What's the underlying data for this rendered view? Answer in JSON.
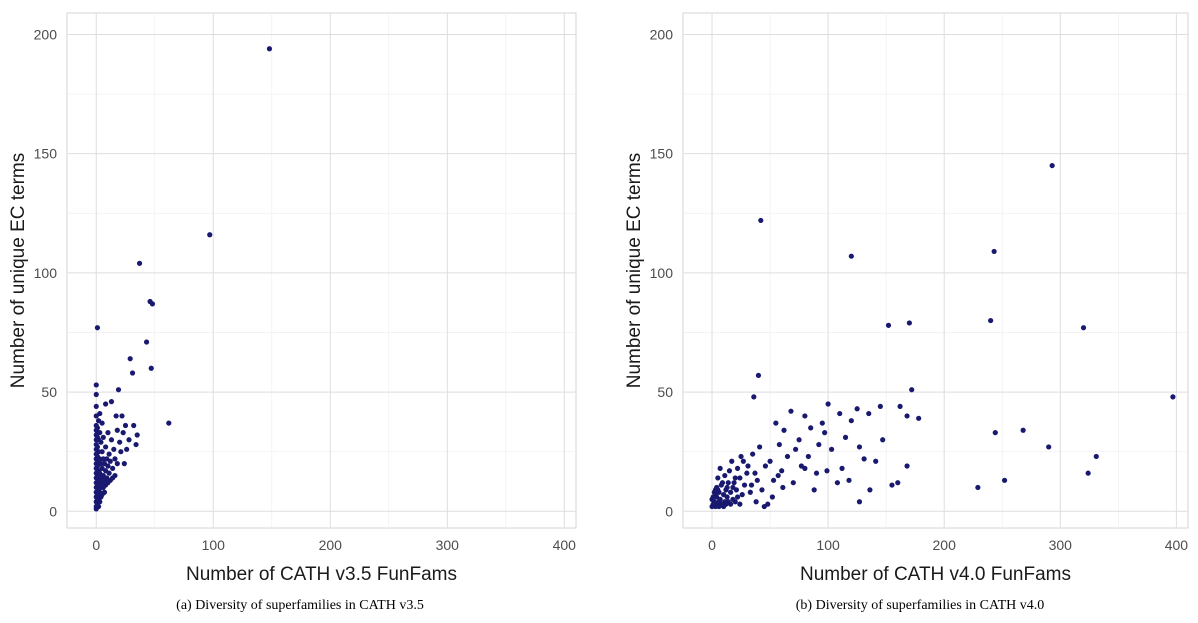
{
  "chart_data": [
    {
      "type": "scatter",
      "xlabel": "Number of CATH v3.5 FunFams",
      "ylabel": "Number of unique EC terms",
      "caption": "(a) Diversity of superfamilies in CATH v3.5",
      "xlim": [
        -25,
        410
      ],
      "ylim": [
        -7,
        209
      ],
      "xticks": [
        0,
        100,
        200,
        300,
        400
      ],
      "yticks": [
        0,
        50,
        100,
        150,
        200
      ],
      "grid": true,
      "point_color": "#191970",
      "points": [
        [
          148,
          194
        ],
        [
          97,
          116
        ],
        [
          37,
          104
        ],
        [
          46,
          88
        ],
        [
          48,
          87
        ],
        [
          43,
          71
        ],
        [
          29,
          64
        ],
        [
          47,
          60
        ],
        [
          31,
          58
        ],
        [
          1,
          77
        ],
        [
          62,
          37
        ],
        [
          19,
          51
        ],
        [
          13,
          46
        ],
        [
          8,
          45
        ],
        [
          32,
          36
        ],
        [
          34,
          28
        ],
        [
          22,
          40
        ],
        [
          17,
          40
        ],
        [
          25,
          36
        ],
        [
          18,
          34
        ],
        [
          0,
          53
        ],
        [
          0,
          49
        ],
        [
          0,
          44
        ],
        [
          0,
          40
        ],
        [
          0,
          36
        ],
        [
          0,
          34
        ],
        [
          0,
          32
        ],
        [
          0,
          30
        ],
        [
          0,
          28
        ],
        [
          0,
          26
        ],
        [
          0,
          24
        ],
        [
          0,
          22
        ],
        [
          0,
          20
        ],
        [
          0,
          18
        ],
        [
          0,
          16
        ],
        [
          0,
          14
        ],
        [
          0,
          12
        ],
        [
          0,
          10
        ],
        [
          0,
          8
        ],
        [
          0,
          6
        ],
        [
          0,
          4
        ],
        [
          0,
          2
        ],
        [
          0,
          1
        ],
        [
          1,
          35
        ],
        [
          1,
          31
        ],
        [
          1,
          27
        ],
        [
          1,
          23
        ],
        [
          1,
          19
        ],
        [
          1,
          15
        ],
        [
          1,
          11
        ],
        [
          1,
          7
        ],
        [
          1,
          3
        ],
        [
          2,
          38
        ],
        [
          2,
          30
        ],
        [
          2,
          25
        ],
        [
          2,
          21
        ],
        [
          2,
          17
        ],
        [
          2,
          13
        ],
        [
          2,
          9
        ],
        [
          2,
          5
        ],
        [
          2,
          2
        ],
        [
          3,
          41
        ],
        [
          3,
          33
        ],
        [
          3,
          22
        ],
        [
          3,
          16
        ],
        [
          3,
          12
        ],
        [
          3,
          8
        ],
        [
          3,
          4
        ],
        [
          4,
          29
        ],
        [
          4,
          20
        ],
        [
          4,
          14
        ],
        [
          4,
          10
        ],
        [
          4,
          6
        ],
        [
          5,
          37
        ],
        [
          5,
          25
        ],
        [
          5,
          18
        ],
        [
          5,
          12
        ],
        [
          5,
          7
        ],
        [
          6,
          31
        ],
        [
          6,
          22
        ],
        [
          6,
          15
        ],
        [
          6,
          10
        ],
        [
          7,
          20
        ],
        [
          7,
          13
        ],
        [
          7,
          8
        ],
        [
          8,
          27
        ],
        [
          8,
          17
        ],
        [
          8,
          11
        ],
        [
          9,
          22
        ],
        [
          9,
          14
        ],
        [
          10,
          33
        ],
        [
          10,
          19
        ],
        [
          10,
          12
        ],
        [
          11,
          24
        ],
        [
          11,
          16
        ],
        [
          12,
          21
        ],
        [
          12,
          13
        ],
        [
          13,
          30
        ],
        [
          14,
          18
        ],
        [
          14,
          14
        ],
        [
          15,
          26
        ],
        [
          16,
          22
        ],
        [
          16,
          15
        ],
        [
          18,
          20
        ],
        [
          20,
          29
        ],
        [
          21,
          25
        ],
        [
          23,
          33
        ],
        [
          24,
          20
        ],
        [
          26,
          26
        ],
        [
          28,
          30
        ],
        [
          35,
          32
        ]
      ]
    },
    {
      "type": "scatter",
      "xlabel": "Number of CATH v4.0 FunFams",
      "ylabel": "Number of unique EC terms",
      "caption": "(b) Diversity of superfamilies in CATH v4.0",
      "xlim": [
        -25,
        410
      ],
      "ylim": [
        -7,
        209
      ],
      "xticks": [
        0,
        100,
        200,
        300,
        400
      ],
      "yticks": [
        0,
        50,
        100,
        150,
        200
      ],
      "grid": true,
      "point_color": "#191970",
      "points": [
        [
          293,
          145
        ],
        [
          42,
          122
        ],
        [
          120,
          107
        ],
        [
          243,
          109
        ],
        [
          240,
          80
        ],
        [
          320,
          77
        ],
        [
          170,
          79
        ],
        [
          152,
          78
        ],
        [
          397,
          48
        ],
        [
          40,
          57
        ],
        [
          172,
          51
        ],
        [
          36,
          48
        ],
        [
          100,
          45
        ],
        [
          110,
          41
        ],
        [
          120,
          38
        ],
        [
          97,
          33
        ],
        [
          125,
          43
        ],
        [
          135,
          41
        ],
        [
          162,
          44
        ],
        [
          178,
          39
        ],
        [
          145,
          44
        ],
        [
          168,
          40
        ],
        [
          244,
          33
        ],
        [
          268,
          34
        ],
        [
          290,
          27
        ],
        [
          331,
          23
        ],
        [
          324,
          16
        ],
        [
          229,
          10
        ],
        [
          252,
          13
        ],
        [
          80,
          40
        ],
        [
          68,
          42
        ],
        [
          55,
          37
        ],
        [
          85,
          35
        ],
        [
          62,
          34
        ],
        [
          75,
          30
        ],
        [
          58,
          28
        ],
        [
          92,
          28
        ],
        [
          115,
          31
        ],
        [
          127,
          27
        ],
        [
          141,
          21
        ],
        [
          160,
          12
        ],
        [
          168,
          19
        ],
        [
          155,
          11
        ],
        [
          136,
          9
        ],
        [
          127,
          4
        ],
        [
          108,
          12
        ],
        [
          99,
          17
        ],
        [
          88,
          9
        ],
        [
          80,
          18
        ],
        [
          72,
          26
        ],
        [
          60,
          17
        ],
        [
          52,
          6
        ],
        [
          48,
          3
        ],
        [
          45,
          2
        ],
        [
          38,
          4
        ],
        [
          34,
          11
        ],
        [
          30,
          16
        ],
        [
          27,
          21
        ],
        [
          25,
          23
        ],
        [
          22,
          18
        ],
        [
          20,
          14
        ],
        [
          18,
          10
        ],
        [
          16,
          8
        ],
        [
          14,
          12
        ],
        [
          13,
          6
        ],
        [
          12,
          9
        ],
        [
          11,
          4
        ],
        [
          10,
          7
        ],
        [
          9,
          3
        ],
        [
          8,
          11
        ],
        [
          7,
          5
        ],
        [
          6,
          8
        ],
        [
          5,
          3
        ],
        [
          4,
          6
        ],
        [
          3,
          2
        ],
        [
          2,
          4
        ],
        [
          1,
          3
        ],
        [
          0,
          5
        ],
        [
          0,
          2
        ],
        [
          3,
          9
        ],
        [
          5,
          14
        ],
        [
          7,
          18
        ],
        [
          9,
          12
        ],
        [
          11,
          15
        ],
        [
          13,
          10
        ],
        [
          15,
          17
        ],
        [
          17,
          21
        ],
        [
          19,
          12
        ],
        [
          21,
          9
        ],
        [
          24,
          14
        ],
        [
          26,
          7
        ],
        [
          28,
          11
        ],
        [
          31,
          19
        ],
        [
          33,
          8
        ],
        [
          35,
          24
        ],
        [
          37,
          16
        ],
        [
          39,
          13
        ],
        [
          41,
          27
        ],
        [
          43,
          9
        ],
        [
          46,
          19
        ],
        [
          50,
          21
        ],
        [
          53,
          13
        ],
        [
          57,
          15
        ],
        [
          61,
          10
        ],
        [
          65,
          23
        ],
        [
          70,
          12
        ],
        [
          77,
          19
        ],
        [
          83,
          23
        ],
        [
          90,
          16
        ],
        [
          95,
          37
        ],
        [
          103,
          26
        ],
        [
          112,
          18
        ],
        [
          118,
          13
        ],
        [
          131,
          22
        ],
        [
          147,
          30
        ],
        [
          6,
          2
        ],
        [
          8,
          3
        ],
        [
          10,
          2
        ],
        [
          12,
          3
        ],
        [
          14,
          4
        ],
        [
          16,
          3
        ],
        [
          18,
          5
        ],
        [
          20,
          4
        ],
        [
          22,
          6
        ],
        [
          24,
          3
        ],
        [
          1,
          6
        ],
        [
          2,
          8
        ],
        [
          4,
          10
        ],
        [
          6,
          4
        ],
        [
          3,
          7
        ],
        [
          5,
          9
        ]
      ]
    }
  ]
}
